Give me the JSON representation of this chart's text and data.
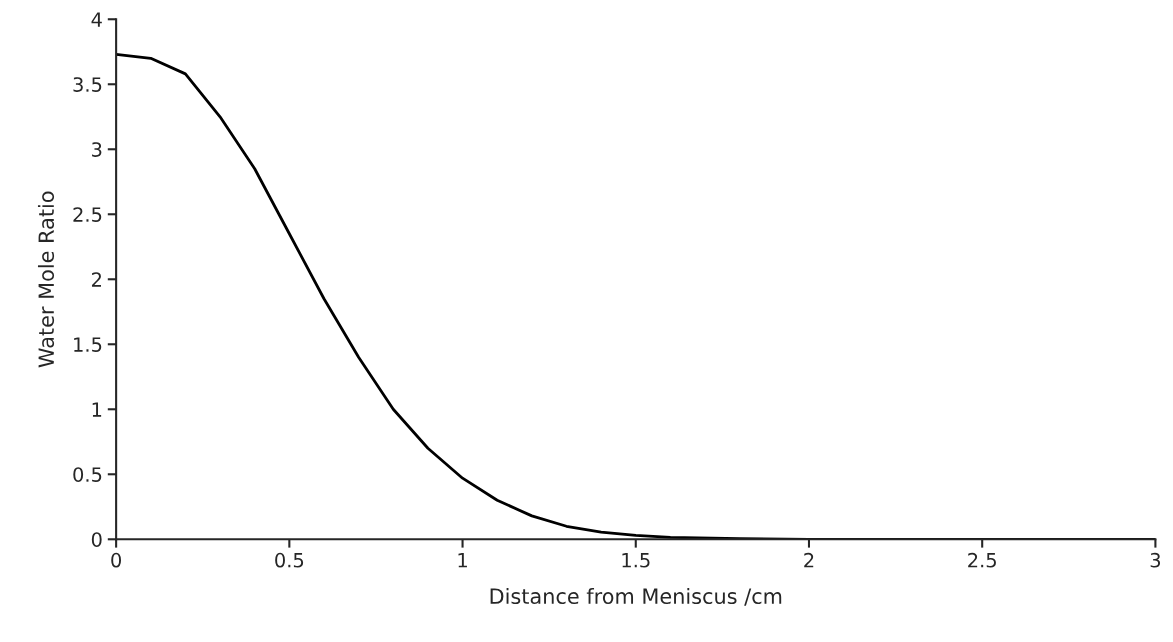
{
  "chart_data": {
    "type": "line",
    "xlabel": "Distance from Meniscus /cm",
    "ylabel": "Water Mole Ratio",
    "x": [
      0,
      0.1,
      0.2,
      0.3,
      0.4,
      0.5,
      0.6,
      0.7,
      0.8,
      0.9,
      1.0,
      1.1,
      1.2,
      1.3,
      1.4,
      1.5,
      1.6,
      1.8,
      2.0,
      2.5,
      3.0
    ],
    "series": [
      {
        "color": "#000000",
        "values": [
          3.73,
          3.7,
          3.58,
          3.25,
          2.85,
          2.35,
          1.85,
          1.4,
          1.0,
          0.7,
          0.47,
          0.3,
          0.18,
          0.1,
          0.055,
          0.03,
          0.015,
          0.004,
          0,
          0,
          0
        ]
      }
    ],
    "xlim": [
      0,
      3
    ],
    "ylim": [
      0,
      4
    ],
    "xticks": [
      0,
      0.5,
      1,
      1.5,
      2,
      2.5,
      3
    ],
    "yticks": [
      0,
      0.5,
      1,
      1.5,
      2,
      2.5,
      3,
      3.5,
      4
    ],
    "grid": false,
    "legend": false,
    "marker": "none",
    "line_style": "solid"
  }
}
